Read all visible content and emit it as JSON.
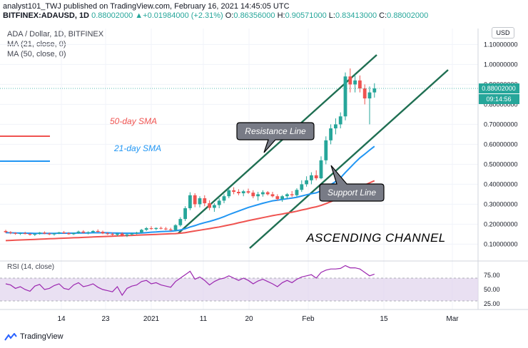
{
  "header": {
    "line1": "analyst101_TWJ published on TradingView.com, February 16, 2021 14:45:05 UTC",
    "symbol": "BITFINEX:ADAUSD, 1D",
    "last": "0.88002000",
    "change": "+0.01984000 (+2.31%)",
    "o_label": "O:",
    "o": "0.86356000",
    "h_label": "H:",
    "h": "0.90571000",
    "l_label": "L:",
    "l": "0.83413000",
    "c_label": "C:",
    "c": "0.88002000"
  },
  "legend": {
    "title": "ADA / Dollar, 1D, BITFINEX",
    "ma21": "MA (21, close, 0)",
    "ma50": "MA (50, close, 0)"
  },
  "currency": "USD",
  "price_label": "0.88002000",
  "countdown": "09:14:56",
  "annotations": {
    "sma50": "50-day SMA",
    "sma21": "21-day SMA",
    "resistance": "Resistance Line",
    "support": "Support Line",
    "channel": "ASCENDING CHANNEL"
  },
  "rsi": {
    "label": "RSI (14, close)",
    "ticks": [
      "75.00",
      "50.00",
      "25.00"
    ]
  },
  "footer": {
    "brand": "TradingView"
  },
  "colors": {
    "up": "#26a69a",
    "down": "#ef5350",
    "ma21": "#2196f3",
    "ma50": "#ef5350",
    "channel": "#1f6f52",
    "rsi": "#9c27b0",
    "rsi_band": "#e1d5ee"
  },
  "chart_data": {
    "type": "candlestick",
    "y_axis_ticks": [
      1.1,
      1.0,
      0.9,
      0.8,
      0.7,
      0.6,
      0.5,
      0.4,
      0.3,
      0.2,
      0.1
    ],
    "ylim": [
      0.03,
      1.18
    ],
    "x_axis_labels": [
      "14",
      "23",
      "2021",
      "11",
      "20",
      "Feb",
      "15",
      "Mar"
    ],
    "current_price": 0.88002,
    "candles": [
      [
        0.166,
        0.172,
        0.156,
        0.16
      ],
      [
        0.16,
        0.165,
        0.15,
        0.156
      ],
      [
        0.156,
        0.16,
        0.147,
        0.152
      ],
      [
        0.152,
        0.158,
        0.146,
        0.155
      ],
      [
        0.155,
        0.162,
        0.149,
        0.151
      ],
      [
        0.151,
        0.156,
        0.143,
        0.147
      ],
      [
        0.147,
        0.154,
        0.141,
        0.152
      ],
      [
        0.152,
        0.161,
        0.148,
        0.158
      ],
      [
        0.158,
        0.164,
        0.15,
        0.153
      ],
      [
        0.153,
        0.158,
        0.145,
        0.149
      ],
      [
        0.149,
        0.156,
        0.143,
        0.154
      ],
      [
        0.154,
        0.162,
        0.15,
        0.159
      ],
      [
        0.159,
        0.166,
        0.152,
        0.155
      ],
      [
        0.155,
        0.16,
        0.147,
        0.15
      ],
      [
        0.15,
        0.158,
        0.146,
        0.156
      ],
      [
        0.156,
        0.168,
        0.152,
        0.163
      ],
      [
        0.163,
        0.17,
        0.154,
        0.157
      ],
      [
        0.157,
        0.164,
        0.149,
        0.16
      ],
      [
        0.16,
        0.17,
        0.155,
        0.166
      ],
      [
        0.166,
        0.174,
        0.158,
        0.162
      ],
      [
        0.162,
        0.168,
        0.15,
        0.154
      ],
      [
        0.154,
        0.16,
        0.146,
        0.151
      ],
      [
        0.151,
        0.158,
        0.143,
        0.147
      ],
      [
        0.147,
        0.156,
        0.14,
        0.153
      ],
      [
        0.153,
        0.16,
        0.138,
        0.143
      ],
      [
        0.143,
        0.152,
        0.136,
        0.149
      ],
      [
        0.149,
        0.158,
        0.144,
        0.154
      ],
      [
        0.154,
        0.162,
        0.149,
        0.158
      ],
      [
        0.158,
        0.176,
        0.154,
        0.172
      ],
      [
        0.172,
        0.186,
        0.166,
        0.18
      ],
      [
        0.18,
        0.19,
        0.172,
        0.176
      ],
      [
        0.176,
        0.184,
        0.17,
        0.181
      ],
      [
        0.181,
        0.188,
        0.174,
        0.178
      ],
      [
        0.178,
        0.186,
        0.17,
        0.174
      ],
      [
        0.174,
        0.182,
        0.166,
        0.17
      ],
      [
        0.17,
        0.2,
        0.166,
        0.195
      ],
      [
        0.195,
        0.235,
        0.188,
        0.226
      ],
      [
        0.226,
        0.29,
        0.216,
        0.28
      ],
      [
        0.28,
        0.36,
        0.27,
        0.345
      ],
      [
        0.345,
        0.355,
        0.285,
        0.3
      ],
      [
        0.3,
        0.34,
        0.284,
        0.33
      ],
      [
        0.33,
        0.345,
        0.29,
        0.305
      ],
      [
        0.305,
        0.32,
        0.27,
        0.282
      ],
      [
        0.282,
        0.305,
        0.262,
        0.296
      ],
      [
        0.296,
        0.33,
        0.28,
        0.318
      ],
      [
        0.318,
        0.35,
        0.305,
        0.34
      ],
      [
        0.34,
        0.378,
        0.33,
        0.37
      ],
      [
        0.37,
        0.385,
        0.35,
        0.362
      ],
      [
        0.362,
        0.375,
        0.345,
        0.355
      ],
      [
        0.355,
        0.372,
        0.34,
        0.365
      ],
      [
        0.365,
        0.378,
        0.352,
        0.358
      ],
      [
        0.358,
        0.37,
        0.33,
        0.34
      ],
      [
        0.34,
        0.362,
        0.318,
        0.35
      ],
      [
        0.35,
        0.37,
        0.338,
        0.36
      ],
      [
        0.36,
        0.366,
        0.344,
        0.35
      ],
      [
        0.35,
        0.362,
        0.334,
        0.34
      ],
      [
        0.34,
        0.35,
        0.318,
        0.326
      ],
      [
        0.326,
        0.346,
        0.312,
        0.34
      ],
      [
        0.34,
        0.356,
        0.326,
        0.35
      ],
      [
        0.35,
        0.366,
        0.336,
        0.345
      ],
      [
        0.345,
        0.38,
        0.336,
        0.372
      ],
      [
        0.372,
        0.42,
        0.362,
        0.4
      ],
      [
        0.4,
        0.44,
        0.388,
        0.42
      ],
      [
        0.42,
        0.46,
        0.4,
        0.445
      ],
      [
        0.445,
        0.47,
        0.42,
        0.43
      ],
      [
        0.43,
        0.54,
        0.425,
        0.52
      ],
      [
        0.52,
        0.64,
        0.5,
        0.62
      ],
      [
        0.62,
        0.7,
        0.6,
        0.68
      ],
      [
        0.68,
        0.73,
        0.65,
        0.7
      ],
      [
        0.7,
        0.76,
        0.68,
        0.74
      ],
      [
        0.74,
        0.96,
        0.72,
        0.94
      ],
      [
        0.94,
        0.98,
        0.86,
        0.9
      ],
      [
        0.9,
        0.95,
        0.86,
        0.92
      ],
      [
        0.92,
        0.945,
        0.86,
        0.88
      ],
      [
        0.88,
        0.9,
        0.8,
        0.83
      ],
      [
        0.83,
        0.89,
        0.7,
        0.86
      ],
      [
        0.86,
        0.906,
        0.834,
        0.88
      ]
    ],
    "ma21": [
      0.158,
      0.157,
      0.156,
      0.156,
      0.155,
      0.155,
      0.154,
      0.154,
      0.154,
      0.154,
      0.154,
      0.155,
      0.155,
      0.155,
      0.155,
      0.156,
      0.156,
      0.156,
      0.157,
      0.157,
      0.157,
      0.157,
      0.156,
      0.156,
      0.155,
      0.155,
      0.155,
      0.155,
      0.156,
      0.158,
      0.16,
      0.161,
      0.163,
      0.164,
      0.165,
      0.167,
      0.171,
      0.177,
      0.186,
      0.193,
      0.201,
      0.208,
      0.214,
      0.221,
      0.229,
      0.238,
      0.248,
      0.257,
      0.266,
      0.275,
      0.284,
      0.291,
      0.298,
      0.305,
      0.311,
      0.317,
      0.32,
      0.324,
      0.328,
      0.331,
      0.335,
      0.341,
      0.347,
      0.353,
      0.357,
      0.367,
      0.381,
      0.398,
      0.414,
      0.432,
      0.459,
      0.484,
      0.509,
      0.532,
      0.551,
      0.571,
      0.59
    ],
    "ma50": [
      0.118,
      0.119,
      0.12,
      0.121,
      0.122,
      0.123,
      0.124,
      0.125,
      0.126,
      0.127,
      0.128,
      0.129,
      0.13,
      0.131,
      0.132,
      0.133,
      0.134,
      0.135,
      0.136,
      0.137,
      0.138,
      0.139,
      0.14,
      0.141,
      0.142,
      0.143,
      0.144,
      0.145,
      0.146,
      0.147,
      0.148,
      0.149,
      0.15,
      0.151,
      0.152,
      0.153,
      0.155,
      0.158,
      0.162,
      0.166,
      0.17,
      0.174,
      0.178,
      0.182,
      0.186,
      0.191,
      0.196,
      0.201,
      0.207,
      0.212,
      0.218,
      0.223,
      0.228,
      0.233,
      0.238,
      0.243,
      0.247,
      0.251,
      0.256,
      0.26,
      0.265,
      0.271,
      0.276,
      0.282,
      0.287,
      0.294,
      0.303,
      0.313,
      0.323,
      0.333,
      0.347,
      0.36,
      0.373,
      0.385,
      0.396,
      0.407,
      0.418
    ],
    "rsi": [
      60,
      58,
      52,
      55,
      50,
      47,
      56,
      59,
      50,
      52,
      57,
      60,
      52,
      50,
      58,
      62,
      55,
      57,
      60,
      54,
      50,
      48,
      46,
      55,
      40,
      52,
      56,
      58,
      64,
      66,
      60,
      62,
      58,
      56,
      54,
      64,
      70,
      76,
      82,
      68,
      72,
      66,
      58,
      64,
      68,
      70,
      74,
      70,
      66,
      70,
      66,
      60,
      65,
      68,
      64,
      60,
      55,
      62,
      66,
      62,
      68,
      72,
      74,
      76,
      70,
      80,
      84,
      86,
      86,
      87,
      92,
      88,
      88,
      86,
      80,
      74,
      77
    ]
  }
}
